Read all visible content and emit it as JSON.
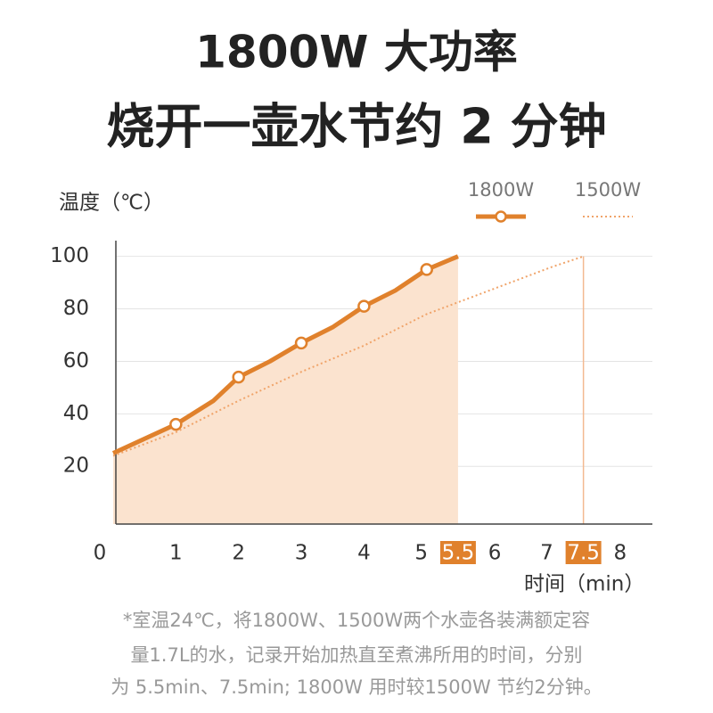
{
  "chart_data": {
    "type": "line",
    "title": [
      "1800W 大功率",
      "烧开一壶水节约 2 分钟"
    ],
    "y_label": "温度（℃）",
    "x_label": "时间（min）",
    "xlim": [
      0,
      8.6
    ],
    "ylim": [
      -2,
      106
    ],
    "xticks": [
      0,
      1,
      2,
      3,
      4,
      5,
      5.5,
      6,
      7,
      7.5,
      8
    ],
    "yticks": [
      20,
      40,
      60,
      80,
      100
    ],
    "grid": true,
    "legend": "top-right",
    "series": [
      {
        "name": "1800W",
        "color": "#e0812c",
        "style": "solid",
        "x": [
          0,
          1,
          1.6,
          2,
          2.5,
          3,
          3.5,
          4,
          4.5,
          5,
          5.5
        ],
        "values": [
          25,
          36,
          45,
          54,
          60,
          67,
          73,
          81,
          87,
          95,
          100
        ]
      },
      {
        "name": "1500W",
        "color": "#f0a46a",
        "style": "dotted",
        "x": [
          0,
          1,
          2,
          3,
          4,
          5,
          6,
          7,
          7.5
        ],
        "values": [
          24,
          33,
          45,
          56,
          66,
          78,
          87,
          96,
          100
        ]
      }
    ],
    "footnote": [
      "*室温24℃，将1800W、1500W两个水壶各装满额定容",
      "量1.7L的水，记录开始加热直至煮沸所用的时间，分别",
      "为 5.5min、7.5min; 1800W 用时较1500W 节约2分钟。"
    ]
  }
}
